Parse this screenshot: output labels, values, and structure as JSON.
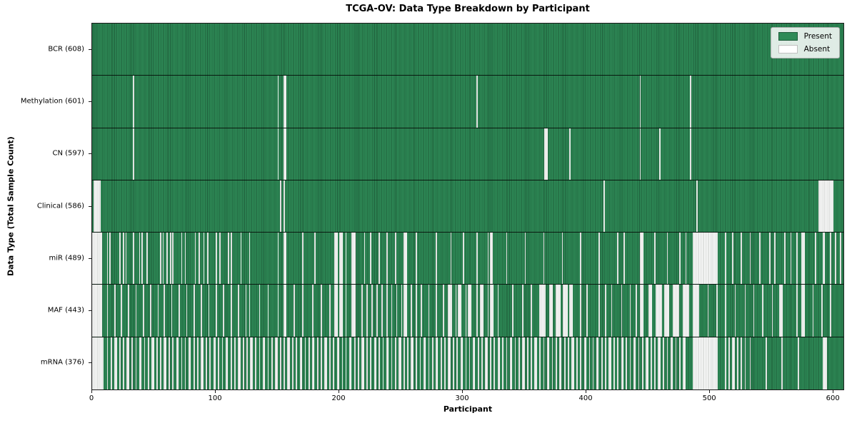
{
  "title": "TCGA-OV: Data Type Breakdown by Participant",
  "axes": {
    "x_label": "Participant",
    "y_label": "Data Type (Total Sample Count)"
  },
  "legend": {
    "location": "upper-right",
    "items": [
      {
        "label": "Present",
        "color": "#2e8b57"
      },
      {
        "label": "Absent",
        "color": "#ffffff"
      }
    ]
  },
  "colors": {
    "present": "#2e8b57",
    "present_cell_edge": "#1e5c3a",
    "absent": "#ffffff",
    "row_divider": "#000000",
    "plot_border": "#1a1a1a",
    "legend_bg": "#ffffff",
    "legend_border": "#b0b0b0"
  },
  "chart_data": {
    "type": "heatmap",
    "title": "TCGA-OV: Data Type Breakdown by Participant",
    "xlabel": "Participant",
    "ylabel": "Data Type (Total Sample Count)",
    "x_range": [
      0,
      608
    ],
    "x_ticks": [
      0,
      100,
      200,
      300,
      400,
      500,
      600
    ],
    "n_participants": 608,
    "grid": false,
    "legend_position": "upper right",
    "cell_states": [
      "Present",
      "Absent"
    ],
    "rows": [
      {
        "key": "BCR",
        "label": "BCR (608)",
        "present_count": 608,
        "absent_ranges": []
      },
      {
        "key": "Methylation",
        "label": "Methylation (601)",
        "present_count": 601,
        "absent_ranges": [
          33,
          150,
          [
            155,
            156
          ],
          311,
          443,
          484
        ]
      },
      {
        "key": "CN",
        "label": "CN (597)",
        "present_count": 597,
        "absent_ranges": [
          33,
          150,
          [
            155,
            156
          ],
          [
            366,
            368
          ],
          386,
          443,
          459,
          484
        ]
      },
      {
        "key": "Clinical",
        "label": "Clinical (586)",
        "present_count": 586,
        "absent_ranges": [
          [
            1,
            6
          ],
          152,
          155,
          414,
          489,
          [
            588,
            599
          ]
        ]
      },
      {
        "key": "miR",
        "label": "miR (489)",
        "present_count": 489,
        "absent_ranges": [
          [
            0,
            7
          ],
          12,
          14,
          22,
          25,
          27,
          33,
          38,
          40,
          44,
          55,
          57,
          60,
          63,
          65,
          72,
          75,
          83,
          86,
          90,
          93,
          100,
          103,
          110,
          112,
          120,
          127,
          150,
          [
            155,
            156
          ],
          170,
          180,
          [
            196,
            198
          ],
          [
            200,
            202
          ],
          205,
          [
            210,
            212
          ],
          220,
          225,
          232,
          238,
          245,
          [
            252,
            254
          ],
          262,
          278,
          290,
          300,
          311,
          320,
          [
            322,
            323
          ],
          335,
          350,
          365,
          380,
          395,
          410,
          425,
          430,
          [
            443,
            445
          ],
          455,
          465,
          475,
          480,
          [
            486,
            505
          ],
          512,
          518,
          525,
          532,
          540,
          548,
          552,
          560,
          565,
          570,
          [
            574,
            576
          ],
          585,
          [
            591,
            592
          ],
          597,
          601,
          605
        ]
      },
      {
        "key": "MAF",
        "label": "MAF (443)",
        "present_count": 443,
        "absent_ranges": [
          [
            0,
            7
          ],
          12,
          18,
          23,
          29,
          35,
          41,
          47,
          53,
          58,
          64,
          70,
          76,
          82,
          88,
          94,
          100,
          106,
          112,
          118,
          124,
          127,
          135,
          142,
          150,
          [
            155,
            156
          ],
          163,
          170,
          178,
          185,
          192,
          [
            196,
            198
          ],
          [
            200,
            202
          ],
          205,
          [
            210,
            212
          ],
          218,
          222,
          226,
          230,
          234,
          238,
          242,
          246,
          250,
          [
            252,
            254
          ],
          258,
          262,
          266,
          272,
          278,
          284,
          [
            288,
            290
          ],
          294,
          [
            296,
            298
          ],
          302,
          [
            304,
            306
          ],
          311,
          [
            314,
            316
          ],
          320,
          [
            322,
            324
          ],
          328,
          340,
          348,
          355,
          [
            362,
            366
          ],
          [
            370,
            372
          ],
          [
            375,
            378
          ],
          [
            381,
            384
          ],
          [
            386,
            388
          ],
          395,
          400,
          410,
          415,
          420,
          428,
          435,
          440,
          [
            443,
            445
          ],
          [
            450,
            452
          ],
          [
            456,
            460
          ],
          [
            463,
            466
          ],
          [
            470,
            474
          ],
          [
            478,
            482
          ],
          [
            486,
            490
          ],
          498,
          505,
          512,
          520,
          528,
          535,
          542,
          550,
          [
            556,
            558
          ],
          570,
          [
            574,
            576
          ],
          583,
          590,
          597
        ]
      },
      {
        "key": "mRNA",
        "label": "mRNA (376)",
        "present_count": 376,
        "absent_ranges": [
          [
            0,
            8
          ],
          12,
          15,
          [
            18,
            19
          ],
          22,
          25,
          [
            28,
            29
          ],
          32,
          35,
          [
            38,
            39
          ],
          42,
          45,
          [
            48,
            49
          ],
          52,
          55,
          [
            58,
            59
          ],
          62,
          65,
          [
            68,
            69
          ],
          72,
          75,
          [
            78,
            79
          ],
          82,
          85,
          [
            88,
            89
          ],
          92,
          95,
          [
            98,
            99
          ],
          102,
          105,
          [
            108,
            109
          ],
          112,
          115,
          [
            118,
            119
          ],
          122,
          125,
          [
            128,
            129
          ],
          132,
          135,
          [
            138,
            139
          ],
          142,
          145,
          [
            148,
            149
          ],
          152,
          155,
          [
            158,
            159
          ],
          162,
          165,
          [
            168,
            169
          ],
          172,
          175,
          [
            178,
            179
          ],
          182,
          185,
          [
            188,
            189
          ],
          192,
          195,
          [
            198,
            199
          ],
          202,
          205,
          [
            208,
            209
          ],
          212,
          215,
          [
            218,
            219
          ],
          222,
          225,
          [
            228,
            229
          ],
          232,
          235,
          [
            238,
            239
          ],
          242,
          245,
          [
            248,
            249
          ],
          252,
          255,
          [
            258,
            259
          ],
          262,
          265,
          [
            268,
            269
          ],
          272,
          275,
          [
            278,
            279
          ],
          282,
          285,
          [
            288,
            289
          ],
          292,
          295,
          [
            298,
            299
          ],
          302,
          305,
          [
            308,
            309
          ],
          312,
          315,
          [
            318,
            319
          ],
          322,
          325,
          [
            328,
            329
          ],
          332,
          335,
          [
            338,
            339
          ],
          342,
          345,
          [
            348,
            349
          ],
          352,
          355,
          [
            358,
            359
          ],
          362,
          365,
          [
            368,
            369
          ],
          372,
          375,
          [
            378,
            379
          ],
          382,
          385,
          [
            388,
            389
          ],
          392,
          395,
          [
            398,
            399
          ],
          402,
          405,
          [
            408,
            409
          ],
          412,
          415,
          [
            418,
            419
          ],
          422,
          425,
          [
            428,
            429
          ],
          432,
          435,
          [
            438,
            439
          ],
          442,
          445,
          [
            448,
            449
          ],
          452,
          455,
          [
            458,
            459
          ],
          462,
          465,
          [
            468,
            469
          ],
          472,
          475,
          [
            478,
            479
          ],
          [
            486,
            505
          ],
          512,
          515,
          [
            518,
            519
          ],
          522,
          525,
          528,
          532,
          545,
          558,
          571,
          [
            591,
            594
          ]
        ]
      }
    ]
  }
}
